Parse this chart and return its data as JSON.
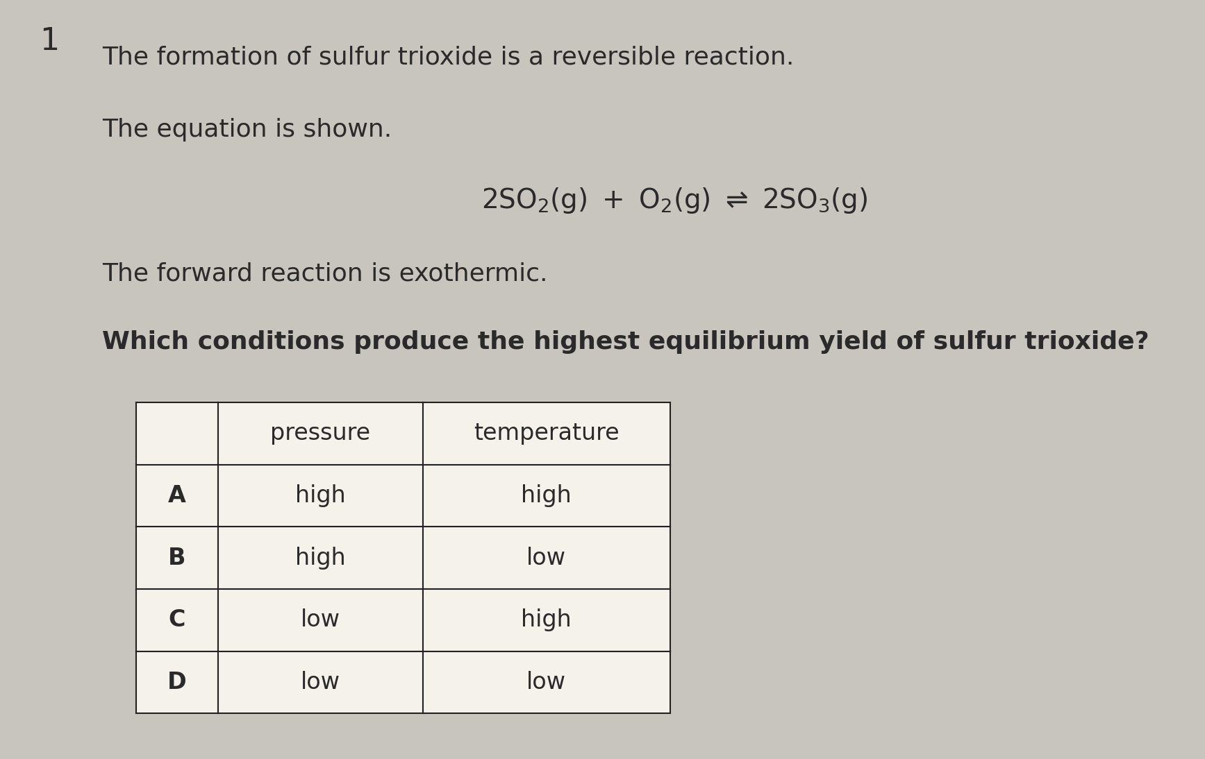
{
  "background_color": "#c8c4be",
  "number_label": "1",
  "line1": "The formation of sulfur trioxide is a reversible reaction.",
  "line2": "The equation is shown.",
  "line3": "The forward reaction is exothermic.",
  "line4": "Which conditions produce the highest equilibrium yield of sulfur trioxide?",
  "table_header": [
    "",
    "pressure",
    "temperature"
  ],
  "table_rows": [
    [
      "A",
      "high",
      "high"
    ],
    [
      "B",
      "high",
      "low"
    ],
    [
      "C",
      "low",
      "high"
    ],
    [
      "D",
      "low",
      "low"
    ]
  ],
  "text_color": "#2a2a2a",
  "table_bg": "#f5f2ec",
  "table_border_color": "#222222",
  "font_size_body": 26,
  "font_size_eq": 26,
  "font_size_table": 24,
  "font_size_number": 32,
  "fig_width": 17.35,
  "fig_height": 10.94,
  "dpi": 100
}
